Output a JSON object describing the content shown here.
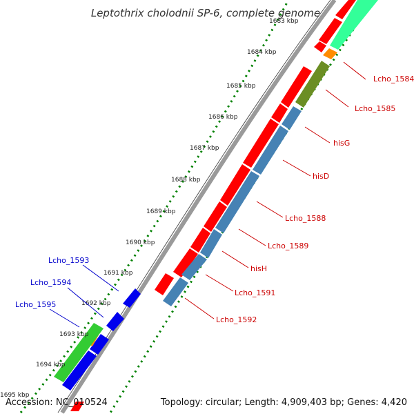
{
  "title": "Leptothrix cholodnii SP-6, complete genome",
  "footer": {
    "accession": "Accession: NC_010524",
    "summary": "Topology: circular; Length: 4,909,403 bp; Genes: 4,420"
  },
  "ticks": [
    "1683 kbp",
    "1684 kbp",
    "1685 kbp",
    "1686 kbp",
    "1687 kbp",
    "1688 kbp",
    "1689 kbp",
    "1690 kbp",
    "1691 kbp",
    "1692 kbp",
    "1693 kbp",
    "1694 kbp",
    "1695 kbp"
  ],
  "right_labels": [
    "Lcho_1584",
    "Lcho_1585",
    "hisG",
    "hisD",
    "Lcho_1588",
    "Lcho_1589",
    "hisH",
    "Lcho_1591",
    "Lcho_1592"
  ],
  "left_labels": [
    "Lcho_1593",
    "Lcho_1594",
    "Lcho_1595"
  ],
  "colors": {
    "backbone": "#8a8a8a",
    "forward_cds": "#ff0000",
    "gene_bar": "#4682b4",
    "reverse_cds": "#0000ee",
    "tick_dots": "#008000",
    "label_right": "#cc0000",
    "label_left": "#0000cc",
    "mint_feature": "#33ff99",
    "olive_feature": "#6b8e23",
    "orange_feature": "#ff8c00",
    "green_feature": "#33cc33"
  }
}
